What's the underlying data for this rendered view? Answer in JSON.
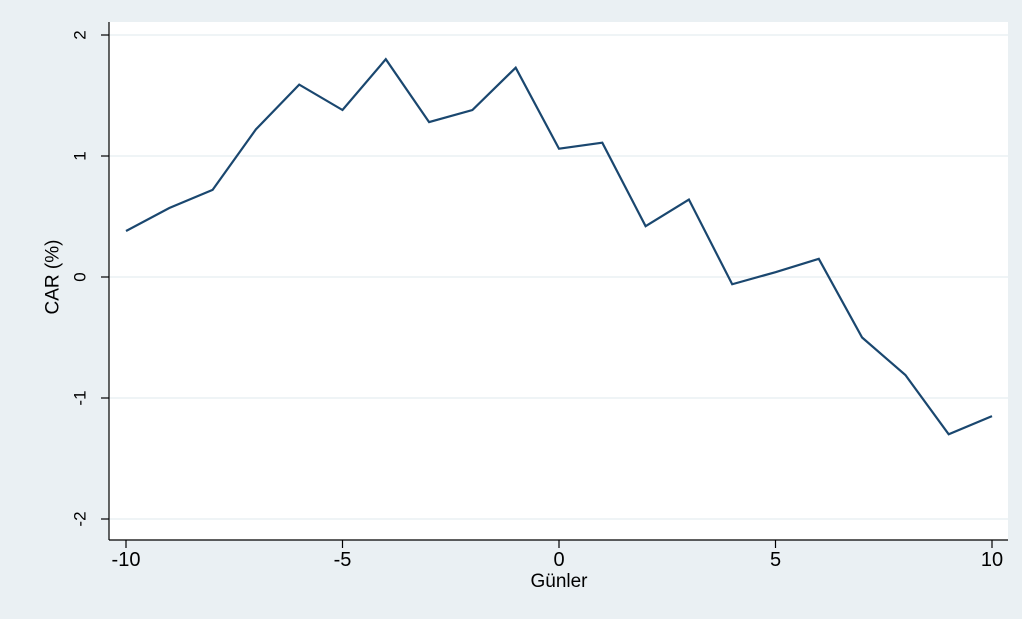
{
  "chart_data": {
    "type": "line",
    "title": "",
    "xlabel": "Günler",
    "ylabel": "CAR (%)",
    "xlim": [
      -10,
      10
    ],
    "ylim": [
      -2,
      2
    ],
    "xticks": [
      -10,
      -5,
      0,
      5,
      10
    ],
    "xtick_labels": [
      "-10",
      "-5",
      "0",
      "5",
      "10"
    ],
    "yticks": [
      -2,
      -1,
      0,
      1,
      2
    ],
    "ytick_labels": [
      "-2",
      "-1",
      "0",
      "1",
      "2"
    ],
    "grid": "horizontal",
    "legend": "none",
    "x": [
      -10,
      -9,
      -8,
      -7,
      -6,
      -5,
      -4,
      -3,
      -2,
      -1,
      0,
      1,
      2,
      3,
      4,
      5,
      6,
      7,
      8,
      9,
      10
    ],
    "series": [
      {
        "values": [
          0.38,
          0.57,
          0.72,
          1.22,
          1.59,
          1.38,
          1.8,
          1.28,
          1.38,
          1.73,
          1.06,
          1.11,
          0.42,
          0.64,
          -0.06,
          0.04,
          0.15,
          -0.5,
          -0.81,
          -1.3,
          -1.15
        ]
      }
    ],
    "colors": {
      "background": "#eaf0f3",
      "plot_background": "#ffffff",
      "line": "#1a476f",
      "grid": "#eaf0f3",
      "axis": "#000000"
    }
  }
}
